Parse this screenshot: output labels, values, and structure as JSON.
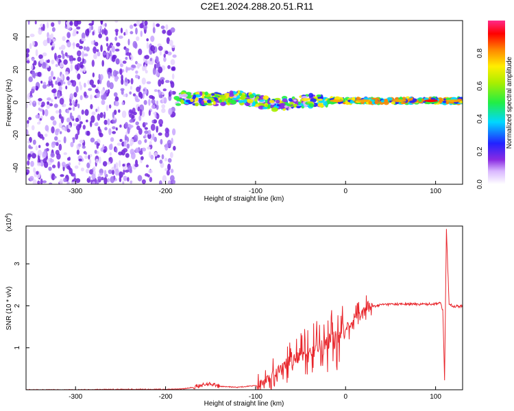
{
  "title": "C2E1.2024.288.20.51.R11",
  "colors": {
    "spectrum_low": "#8a2be2",
    "snr_line": "#e8242a",
    "background": "#ffffff"
  },
  "chart_data": [
    {
      "type": "heatmap",
      "title": "C2E1.2024.288.20.51.R11",
      "xlabel": "Height of straight line (km)",
      "ylabel": "Frequency (Hz)",
      "xlim": [
        -355,
        130
      ],
      "ylim": [
        -50,
        50
      ],
      "xticks": [
        -300,
        -200,
        -100,
        0,
        100
      ],
      "yticks": [
        -40,
        -20,
        0,
        20,
        40
      ],
      "noise_region_x": [
        -355,
        -190
      ],
      "signal_band": [
        {
          "x": -185,
          "y": 3
        },
        {
          "x": -160,
          "y": 2
        },
        {
          "x": -140,
          "y": 2
        },
        {
          "x": -120,
          "y": 3
        },
        {
          "x": -100,
          "y": 1
        },
        {
          "x": -80,
          "y": -1
        },
        {
          "x": -60,
          "y": 0
        },
        {
          "x": -40,
          "y": 1
        },
        {
          "x": -20,
          "y": 1
        },
        {
          "x": 0,
          "y": 1
        },
        {
          "x": 40,
          "y": 1
        },
        {
          "x": 80,
          "y": 1
        },
        {
          "x": 100,
          "y": 1
        },
        {
          "x": 130,
          "y": 1
        }
      ],
      "colorbar": {
        "label": "Normalized spectral amplitude",
        "range": [
          0,
          1
        ],
        "ticks": [
          "0.0",
          "0.2",
          "0.4",
          "0.6",
          "0.8"
        ]
      }
    },
    {
      "type": "line",
      "xlabel": "Height of straight line (km)",
      "ylabel": "SNR (10 * v/v)",
      "yscale_label": "(x10",
      "yscale_exp": "4",
      "xlim": [
        -355,
        130
      ],
      "ylim": [
        0,
        3.9
      ],
      "xticks": [
        -300,
        -200,
        -100,
        0,
        100
      ],
      "yticks": [
        1,
        2,
        3
      ],
      "series": [
        {
          "x": [
            -355,
            -300,
            -250,
            -200,
            -180,
            -160,
            -150,
            -140,
            -120,
            -100,
            -90,
            -80,
            -70,
            -60,
            -50,
            -40,
            -30,
            -20,
            -10,
            0,
            10,
            20,
            30,
            40,
            50,
            60,
            70,
            80,
            90,
            100,
            105,
            108,
            110,
            112,
            115,
            120,
            130
          ],
          "y": [
            0.0,
            0.0,
            0.01,
            0.01,
            0.02,
            0.1,
            0.15,
            0.08,
            0.06,
            0.1,
            0.2,
            0.4,
            0.55,
            0.7,
            0.85,
            0.9,
            1.0,
            1.1,
            1.25,
            1.45,
            1.7,
            1.9,
            1.98,
            2.03,
            2.04,
            2.04,
            2.04,
            2.04,
            2.04,
            2.05,
            2.08,
            1.9,
            0.25,
            3.8,
            2.05,
            1.99,
            1.99
          ]
        }
      ]
    }
  ]
}
